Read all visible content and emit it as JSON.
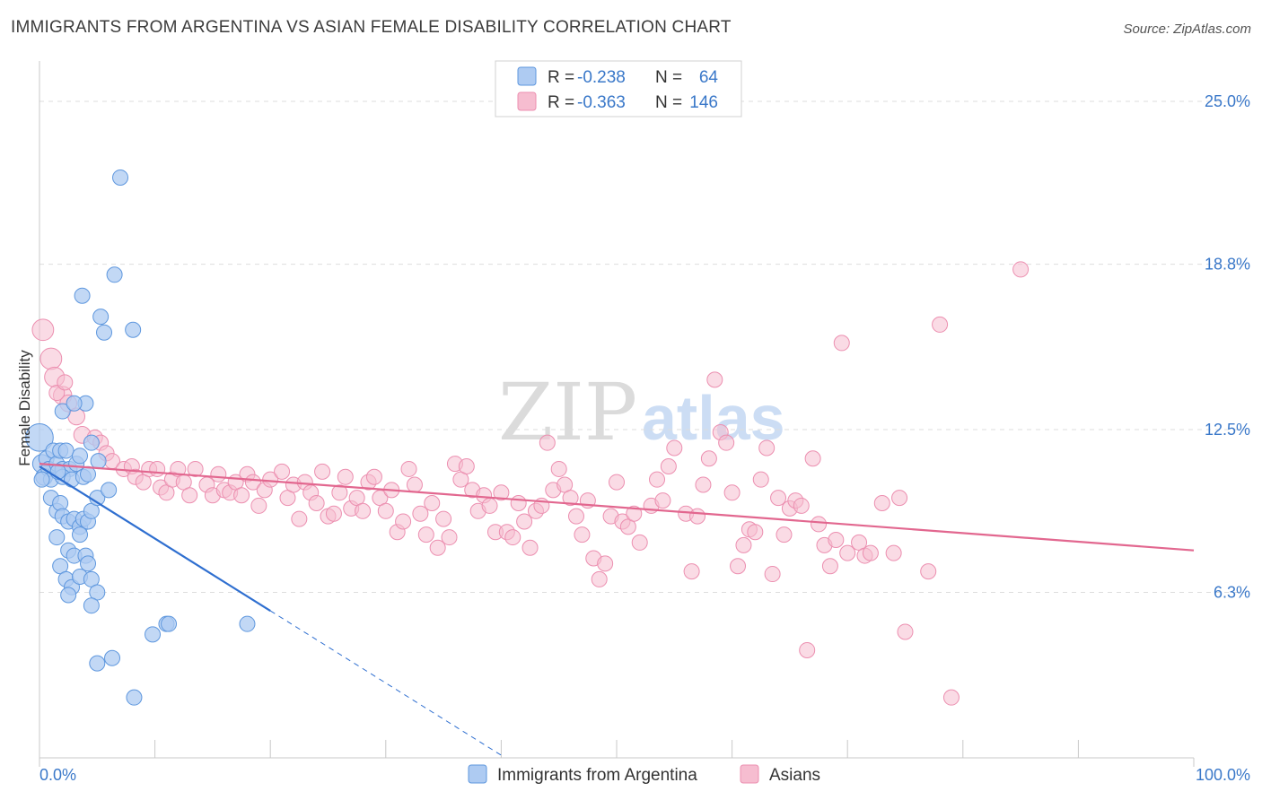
{
  "title": "IMMIGRANTS FROM ARGENTINA VS ASIAN FEMALE DISABILITY CORRELATION CHART",
  "source": "Source: ZipAtlas.com",
  "watermark": {
    "zip": "ZIP",
    "atlas": "atlas"
  },
  "colors": {
    "blue_fill": "#aecbf2",
    "blue_stroke": "#5e97de",
    "blue_line": "#2f6fd0",
    "pink_fill": "#f6bdd0",
    "pink_stroke": "#ec8fb0",
    "pink_line": "#e2678f",
    "label": "#3a78c9",
    "grid": "#dddddd"
  },
  "legend": {
    "rows": [
      {
        "r_label": "R =",
        "r_value": "-0.238",
        "n_label": "N =",
        "n_value": "64",
        "series": "blue"
      },
      {
        "r_label": "R =",
        "r_value": "-0.363",
        "n_label": "N =",
        "n_value": "146",
        "series": "pink"
      }
    ]
  },
  "chart_data": {
    "type": "scatter",
    "ylabel": "Female Disability",
    "xlim": [
      0,
      100
    ],
    "ylim": [
      0,
      26.3
    ],
    "x_tick_labels": {
      "left": "0.0%",
      "right": "100.0%"
    },
    "y_ticks": [
      {
        "value": 6.3,
        "label": "6.3%"
      },
      {
        "value": 12.5,
        "label": "12.5%"
      },
      {
        "value": 18.8,
        "label": "18.8%"
      },
      {
        "value": 25.0,
        "label": "25.0%"
      }
    ],
    "series": [
      {
        "name": "Immigrants from Argentina",
        "color": "blue",
        "trend": {
          "x0": 0,
          "y0": 11.1,
          "x1": 20,
          "y1": 5.6,
          "dash_to_x": 40
        },
        "points": [
          [
            0,
            12.2,
            1.8
          ],
          [
            0.2,
            11.2,
            1.2
          ],
          [
            0.4,
            10.7,
            1.1
          ],
          [
            0.6,
            11.4,
            1
          ],
          [
            0.8,
            11.0,
            1
          ],
          [
            1.0,
            10.6,
            1
          ],
          [
            1.2,
            11.7,
            1
          ],
          [
            1.5,
            11.2,
            1
          ],
          [
            1.8,
            11.7,
            1
          ],
          [
            2.0,
            11.0,
            1
          ],
          [
            2.3,
            11.7,
            1
          ],
          [
            2.6,
            11.0,
            1
          ],
          [
            2.0,
            10.7,
            1
          ],
          [
            2.8,
            10.6,
            1
          ],
          [
            3.2,
            11.2,
            1
          ],
          [
            3.5,
            11.5,
            1
          ],
          [
            3.8,
            10.7,
            1
          ],
          [
            4.2,
            10.8,
            1
          ],
          [
            1.0,
            9.9,
            1
          ],
          [
            1.5,
            9.4,
            1
          ],
          [
            1.8,
            9.7,
            1
          ],
          [
            2.0,
            9.2,
            1
          ],
          [
            2.5,
            9.0,
            1
          ],
          [
            3.0,
            9.1,
            1
          ],
          [
            3.5,
            8.8,
            1
          ],
          [
            3.8,
            9.1,
            1
          ],
          [
            4.2,
            9.0,
            1
          ],
          [
            4.5,
            9.4,
            1
          ],
          [
            5.0,
            9.9,
            1
          ],
          [
            6.0,
            10.2,
            1
          ],
          [
            1.5,
            8.4,
            1
          ],
          [
            2.5,
            7.9,
            1
          ],
          [
            3.0,
            7.7,
            1
          ],
          [
            3.5,
            8.5,
            1
          ],
          [
            4.0,
            7.7,
            1
          ],
          [
            4.2,
            7.4,
            1
          ],
          [
            1.8,
            7.3,
            1
          ],
          [
            2.3,
            6.8,
            1
          ],
          [
            2.8,
            6.5,
            1
          ],
          [
            3.5,
            6.9,
            1
          ],
          [
            4.5,
            6.8,
            1
          ],
          [
            5.0,
            6.3,
            1
          ],
          [
            2.5,
            6.2,
            1
          ],
          [
            4.5,
            5.8,
            1
          ],
          [
            5.0,
            3.6,
            1
          ],
          [
            6.3,
            3.8,
            1
          ],
          [
            7.0,
            22.1,
            1
          ],
          [
            6.5,
            18.4,
            1
          ],
          [
            3.7,
            17.6,
            1
          ],
          [
            5.3,
            16.8,
            1
          ],
          [
            5.6,
            16.2,
            1
          ],
          [
            8.1,
            16.3,
            1
          ],
          [
            9.8,
            4.7,
            1
          ],
          [
            11.0,
            5.1,
            1
          ],
          [
            11.2,
            5.1,
            1
          ],
          [
            18.0,
            5.1,
            1
          ],
          [
            8.2,
            2.3,
            1
          ],
          [
            2.0,
            13.2,
            1
          ],
          [
            4.0,
            13.5,
            1
          ],
          [
            3.0,
            13.5,
            1
          ],
          [
            5.1,
            11.3,
            1
          ],
          [
            4.5,
            12.0,
            1
          ],
          [
            0.2,
            10.6,
            1
          ],
          [
            1.6,
            10.9,
            1
          ]
        ]
      },
      {
        "name": "Asians",
        "color": "pink",
        "trend": {
          "x0": 0,
          "y0": 11.2,
          "x1": 100,
          "y1": 7.9
        },
        "points": [
          [
            0.3,
            16.3,
            1.4
          ],
          [
            1.0,
            15.2,
            1.4
          ],
          [
            1.3,
            14.5,
            1.3
          ],
          [
            2.0,
            13.8,
            1.2
          ],
          [
            2.5,
            13.5,
            1.1
          ],
          [
            3.2,
            13.0,
            1.1
          ],
          [
            3.7,
            12.3,
            1.1
          ],
          [
            4.8,
            12.2,
            1
          ],
          [
            5.3,
            12.0,
            1
          ],
          [
            5.8,
            11.6,
            1
          ],
          [
            6.3,
            11.3,
            1
          ],
          [
            7.3,
            11.0,
            1
          ],
          [
            8.0,
            11.1,
            1
          ],
          [
            8.3,
            10.7,
            1
          ],
          [
            9.0,
            10.5,
            1
          ],
          [
            9.5,
            11.0,
            1
          ],
          [
            10.2,
            11.0,
            1
          ],
          [
            10.5,
            10.3,
            1
          ],
          [
            11.0,
            10.1,
            1
          ],
          [
            11.5,
            10.6,
            1
          ],
          [
            12.0,
            11.0,
            1
          ],
          [
            12.5,
            10.5,
            1
          ],
          [
            13.0,
            10.0,
            1
          ],
          [
            13.5,
            11.0,
            1
          ],
          [
            14.5,
            10.4,
            1
          ],
          [
            15.0,
            10.0,
            1
          ],
          [
            15.5,
            10.8,
            1
          ],
          [
            16.0,
            10.2,
            1
          ],
          [
            16.5,
            10.1,
            1
          ],
          [
            17.0,
            10.5,
            1
          ],
          [
            17.5,
            10.0,
            1
          ],
          [
            18.0,
            10.8,
            1
          ],
          [
            18.5,
            10.5,
            1
          ],
          [
            19.0,
            9.6,
            1
          ],
          [
            19.5,
            10.2,
            1
          ],
          [
            20.0,
            10.6,
            1
          ],
          [
            21.0,
            10.9,
            1
          ],
          [
            21.5,
            9.9,
            1
          ],
          [
            22.0,
            10.4,
            1
          ],
          [
            22.5,
            9.1,
            1
          ],
          [
            23.0,
            10.5,
            1
          ],
          [
            23.5,
            10.1,
            1
          ],
          [
            24.0,
            9.7,
            1
          ],
          [
            24.5,
            10.9,
            1
          ],
          [
            25.0,
            9.2,
            1
          ],
          [
            25.5,
            9.3,
            1
          ],
          [
            26.0,
            10.1,
            1
          ],
          [
            26.5,
            10.7,
            1
          ],
          [
            27.0,
            9.5,
            1
          ],
          [
            27.5,
            9.9,
            1
          ],
          [
            28.0,
            9.4,
            1
          ],
          [
            28.5,
            10.5,
            1
          ],
          [
            29.0,
            10.7,
            1
          ],
          [
            29.5,
            9.9,
            1
          ],
          [
            30.0,
            9.4,
            1
          ],
          [
            30.5,
            10.2,
            1
          ],
          [
            31.0,
            8.6,
            1
          ],
          [
            31.5,
            9.0,
            1
          ],
          [
            32.0,
            11.0,
            1
          ],
          [
            32.5,
            10.4,
            1
          ],
          [
            33.0,
            9.3,
            1
          ],
          [
            33.5,
            8.5,
            1
          ],
          [
            34.0,
            9.7,
            1
          ],
          [
            34.5,
            8.0,
            1
          ],
          [
            35.0,
            9.1,
            1
          ],
          [
            35.5,
            8.4,
            1
          ],
          [
            36.0,
            11.2,
            1
          ],
          [
            36.5,
            10.6,
            1
          ],
          [
            37.0,
            11.1,
            1
          ],
          [
            37.5,
            10.2,
            1
          ],
          [
            38.0,
            9.4,
            1
          ],
          [
            38.5,
            10.0,
            1
          ],
          [
            39.0,
            9.6,
            1
          ],
          [
            39.5,
            8.6,
            1
          ],
          [
            40.0,
            10.1,
            1
          ],
          [
            40.5,
            8.6,
            1
          ],
          [
            41.0,
            8.4,
            1
          ],
          [
            41.5,
            9.7,
            1
          ],
          [
            42.0,
            9.0,
            1
          ],
          [
            42.5,
            8.0,
            1
          ],
          [
            43.0,
            9.4,
            1
          ],
          [
            43.5,
            9.6,
            1
          ],
          [
            44.0,
            12.0,
            1
          ],
          [
            44.5,
            10.2,
            1
          ],
          [
            45.0,
            11.0,
            1
          ],
          [
            45.5,
            10.4,
            1
          ],
          [
            46.0,
            9.9,
            1
          ],
          [
            46.5,
            9.2,
            1
          ],
          [
            47.0,
            8.5,
            1
          ],
          [
            47.5,
            9.8,
            1
          ],
          [
            48.0,
            7.6,
            1
          ],
          [
            48.5,
            6.8,
            1
          ],
          [
            49.0,
            7.4,
            1
          ],
          [
            49.5,
            9.2,
            1
          ],
          [
            50.0,
            10.5,
            1
          ],
          [
            50.5,
            9.0,
            1
          ],
          [
            51.0,
            8.8,
            1
          ],
          [
            51.5,
            9.3,
            1
          ],
          [
            52.0,
            8.2,
            1
          ],
          [
            53.0,
            9.6,
            1
          ],
          [
            53.5,
            10.6,
            1
          ],
          [
            54.0,
            9.8,
            1
          ],
          [
            54.5,
            11.1,
            1
          ],
          [
            55.0,
            11.8,
            1
          ],
          [
            56.0,
            9.3,
            1
          ],
          [
            56.5,
            7.1,
            1
          ],
          [
            57.0,
            9.2,
            1
          ],
          [
            57.5,
            10.4,
            1
          ],
          [
            58.0,
            11.4,
            1
          ],
          [
            58.5,
            14.4,
            1
          ],
          [
            59.0,
            12.4,
            1
          ],
          [
            59.5,
            12.0,
            1
          ],
          [
            60.0,
            10.1,
            1
          ],
          [
            60.5,
            7.3,
            1
          ],
          [
            61.0,
            8.1,
            1
          ],
          [
            61.5,
            8.7,
            1
          ],
          [
            62.0,
            8.6,
            1
          ],
          [
            62.5,
            10.6,
            1
          ],
          [
            63.0,
            11.8,
            1
          ],
          [
            63.5,
            7.0,
            1
          ],
          [
            64.0,
            9.9,
            1
          ],
          [
            64.5,
            8.5,
            1
          ],
          [
            65.0,
            9.5,
            1
          ],
          [
            65.5,
            9.8,
            1
          ],
          [
            66.0,
            9.6,
            1
          ],
          [
            66.5,
            4.1,
            1
          ],
          [
            67.0,
            11.4,
            1
          ],
          [
            67.5,
            8.9,
            1
          ],
          [
            68.0,
            8.1,
            1
          ],
          [
            68.5,
            7.3,
            1
          ],
          [
            69.0,
            8.3,
            1
          ],
          [
            69.5,
            15.8,
            1
          ],
          [
            70.0,
            7.8,
            1
          ],
          [
            71.0,
            8.2,
            1
          ],
          [
            71.5,
            7.7,
            1
          ],
          [
            72.0,
            7.8,
            1
          ],
          [
            73.0,
            9.7,
            1
          ],
          [
            74.5,
            9.9,
            1
          ],
          [
            74.0,
            7.8,
            1
          ],
          [
            75.0,
            4.8,
            1
          ],
          [
            77.0,
            7.1,
            1
          ],
          [
            78.0,
            16.5,
            1
          ],
          [
            79.0,
            2.3,
            1
          ],
          [
            85.0,
            18.6,
            1
          ],
          [
            1.5,
            13.9,
            1
          ],
          [
            2.2,
            14.3,
            1
          ]
        ]
      }
    ]
  }
}
